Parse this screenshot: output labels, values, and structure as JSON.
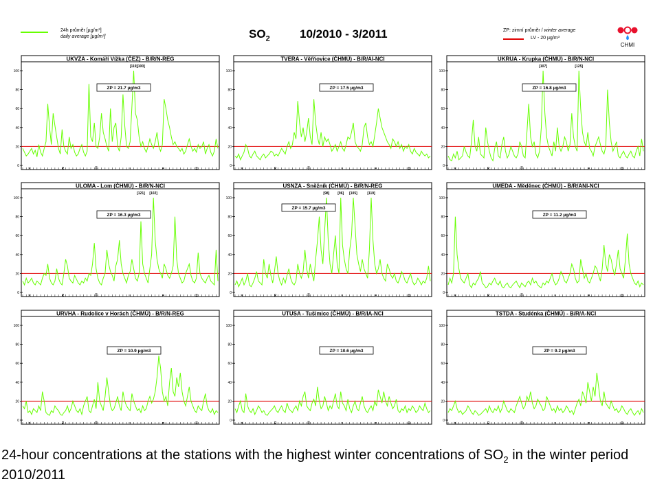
{
  "header": {
    "legend_daily_label_1": "24h průměr [µg/m³]",
    "legend_daily_label_2": "daily average [µg/m³]",
    "legend_winter_label": "ZP: zimní průměr / ",
    "legend_winter_label_en": "winter average",
    "legend_lv_label": "LV  - 20 µg/m³",
    "title_main": "SO",
    "title_sub": "2",
    "period": "10/2010 - 3/2011",
    "logo_text": "CHMI"
  },
  "caption": {
    "line_start": "24-hour concentrations at the stations with the highest winter concentrations of SO",
    "line_sub": "2",
    "line_end": " in the winter period 2010/2011"
  },
  "colors": {
    "series": "#66ff00",
    "limit": "#e00000",
    "logo_red": "#e8112d",
    "logo_blue": "#1e90ff"
  },
  "chart_data": [
    {
      "type": "line",
      "title": "UKVZA - Komáří Vížka (ČEZ) - B/R/N-REG",
      "zp": "ZP = 21.7 µg/m3",
      "peaks": [
        "[119]",
        "[100]"
      ],
      "ylim": [
        0,
        100
      ],
      "limit": 20,
      "x_labels": [
        "X",
        "XI",
        "XII",
        "I",
        "II",
        "III"
      ],
      "values": [
        18,
        14,
        10,
        12,
        15,
        18,
        12,
        16,
        9,
        22,
        14,
        10,
        18,
        25,
        65,
        40,
        22,
        55,
        42,
        30,
        18,
        12,
        38,
        20,
        15,
        12,
        30,
        18,
        22,
        14,
        10,
        12,
        18,
        22,
        14,
        10,
        15,
        86,
        30,
        25,
        45,
        20,
        18,
        30,
        55,
        35,
        28,
        20,
        15,
        60,
        25,
        40,
        45,
        20,
        15,
        30,
        75,
        42,
        20,
        18,
        25,
        62,
        100,
        55,
        48,
        30,
        20,
        25,
        18,
        14,
        20,
        28,
        22,
        18,
        25,
        35,
        20,
        15,
        22,
        70,
        60,
        48,
        40,
        30,
        22,
        25,
        20,
        18,
        15,
        18,
        12,
        15,
        22,
        28,
        20,
        15,
        18,
        14,
        22,
        18,
        20,
        25,
        12,
        18,
        22,
        14,
        10,
        15,
        28,
        18
      ]
    },
    {
      "type": "line",
      "title": "TVERA - Věřňovice (ČHMÚ) - B/R/AI-NCI",
      "zp": "ZP = 17.5 µg/m3",
      "peaks": [],
      "ylim": [
        0,
        100
      ],
      "limit": 20,
      "x_labels": [
        "X",
        "XI",
        "XII",
        "I",
        "II",
        "III"
      ],
      "values": [
        10,
        8,
        12,
        6,
        10,
        14,
        22,
        18,
        10,
        8,
        12,
        15,
        10,
        8,
        6,
        10,
        12,
        8,
        10,
        12,
        15,
        14,
        10,
        12,
        10,
        14,
        18,
        15,
        12,
        20,
        25,
        18,
        22,
        35,
        28,
        68,
        45,
        30,
        40,
        25,
        35,
        50,
        30,
        22,
        70,
        45,
        30,
        22,
        35,
        20,
        30,
        25,
        28,
        22,
        15,
        18,
        22,
        15,
        20,
        25,
        18,
        15,
        22,
        30,
        28,
        35,
        45,
        25,
        20,
        18,
        15,
        22,
        40,
        45,
        30,
        22,
        25,
        20,
        32,
        45,
        60,
        50,
        40,
        35,
        30,
        25,
        22,
        18,
        28,
        25,
        20,
        25,
        18,
        22,
        15,
        20,
        18,
        22,
        15,
        12,
        18,
        14,
        12,
        10,
        15,
        12,
        10,
        12,
        8,
        10
      ]
    },
    {
      "type": "line",
      "title": "UKRUA - Krupka (ČHMÚ) - B/R/N-NCI",
      "zp": "ZP = 16.8 µg/m3",
      "peaks": [
        "[107]",
        "[125]"
      ],
      "ylim": [
        0,
        100
      ],
      "limit": 20,
      "x_labels": [
        "X",
        "XI",
        "XII",
        "I",
        "II",
        "III"
      ],
      "values": [
        10,
        6,
        5,
        12,
        8,
        15,
        6,
        8,
        10,
        20,
        14,
        10,
        8,
        25,
        48,
        20,
        15,
        30,
        12,
        10,
        8,
        40,
        25,
        15,
        8,
        5,
        18,
        25,
        10,
        8,
        22,
        30,
        15,
        8,
        12,
        20,
        15,
        10,
        8,
        12,
        25,
        20,
        10,
        8,
        35,
        65,
        30,
        20,
        25,
        12,
        8,
        15,
        40,
        100,
        55,
        30,
        20,
        15,
        10,
        25,
        15,
        40,
        20,
        15,
        20,
        30,
        25,
        15,
        22,
        55,
        30,
        20,
        15,
        100,
        60,
        35,
        25,
        20,
        35,
        18,
        15,
        10,
        20,
        25,
        30,
        22,
        15,
        12,
        20,
        80,
        45,
        25,
        15,
        20,
        25,
        10,
        8,
        12,
        15,
        10,
        8,
        12,
        15,
        10,
        8,
        15,
        20,
        10,
        28,
        15
      ]
    },
    {
      "type": "line",
      "title": "ULOMA - Lom (ČHMÚ) - B/R/N-NCI",
      "zp": "ZP = 16.3 µg/m3",
      "peaks": [
        "[102]",
        "[121]"
      ],
      "ylim": [
        0,
        100
      ],
      "limit": 20,
      "x_labels": [
        "X",
        "XI",
        "XII",
        "I",
        "II",
        "III"
      ],
      "values": [
        12,
        8,
        15,
        10,
        12,
        15,
        10,
        8,
        12,
        10,
        8,
        15,
        20,
        18,
        30,
        15,
        10,
        8,
        12,
        25,
        15,
        10,
        8,
        20,
        35,
        28,
        15,
        12,
        10,
        18,
        14,
        10,
        8,
        12,
        10,
        15,
        12,
        20,
        18,
        30,
        52,
        25,
        15,
        10,
        8,
        15,
        20,
        45,
        30,
        22,
        18,
        12,
        28,
        35,
        55,
        30,
        20,
        15,
        10,
        18,
        22,
        35,
        25,
        15,
        12,
        20,
        75,
        30,
        20,
        15,
        10,
        25,
        40,
        100,
        55,
        35,
        25,
        20,
        15,
        30,
        25,
        18,
        15,
        20,
        28,
        80,
        35,
        20,
        15,
        10,
        12,
        20,
        25,
        30,
        18,
        12,
        10,
        15,
        42,
        20,
        15,
        12,
        10,
        15,
        18,
        12,
        10,
        8,
        45,
        12
      ]
    },
    {
      "type": "line",
      "title": "USNZA - Sněžník (ČHMÚ) - B/R/N-REG",
      "zp": "ZP = 15.7 µg/m3",
      "peaks": [
        "[98]",
        "[96]",
        "[105]",
        "[119]"
      ],
      "ylim": [
        0,
        100
      ],
      "limit": 20,
      "x_labels": [
        "X",
        "XI",
        "XII",
        "I",
        "II",
        "III"
      ],
      "values": [
        8,
        12,
        6,
        10,
        15,
        8,
        12,
        20,
        8,
        6,
        10,
        15,
        22,
        12,
        10,
        8,
        35,
        20,
        15,
        30,
        18,
        10,
        22,
        38,
        20,
        12,
        8,
        15,
        10,
        18,
        25,
        15,
        10,
        8,
        12,
        30,
        20,
        15,
        22,
        45,
        25,
        15,
        30,
        20,
        12,
        35,
        55,
        80,
        45,
        30,
        65,
        100,
        55,
        30,
        20,
        40,
        60,
        30,
        20,
        100,
        50,
        35,
        25,
        20,
        45,
        60,
        100,
        70,
        40,
        30,
        22,
        35,
        25,
        20,
        15,
        45,
        100,
        55,
        30,
        20,
        25,
        35,
        20,
        15,
        12,
        30,
        25,
        18,
        15,
        20,
        12,
        10,
        15,
        22,
        18,
        12,
        10,
        15,
        20,
        12,
        8,
        10,
        15,
        12,
        8,
        12,
        10,
        15,
        28,
        12
      ]
    },
    {
      "type": "line",
      "title": "UMEDA - Měděnec (ČHMÚ) - B/R/ANI-NCI",
      "zp": "ZP = 11.2 µg/m3",
      "peaks": [],
      "ylim": [
        0,
        100
      ],
      "limit": 20,
      "x_labels": [
        "X",
        "XI",
        "XII",
        "I",
        "II",
        "III"
      ],
      "values": [
        8,
        15,
        10,
        20,
        80,
        40,
        25,
        15,
        12,
        10,
        15,
        20,
        8,
        5,
        10,
        8,
        12,
        15,
        22,
        10,
        8,
        5,
        6,
        10,
        8,
        12,
        15,
        10,
        8,
        12,
        6,
        5,
        8,
        10,
        6,
        5,
        8,
        10,
        12,
        8,
        5,
        10,
        8,
        6,
        10,
        12,
        8,
        15,
        10,
        12,
        8,
        6,
        5,
        10,
        8,
        12,
        10,
        15,
        20,
        12,
        8,
        10,
        15,
        22,
        18,
        12,
        10,
        15,
        20,
        30,
        25,
        15,
        10,
        12,
        35,
        25,
        15,
        20,
        12,
        10,
        15,
        20,
        28,
        25,
        18,
        12,
        25,
        50,
        30,
        22,
        40,
        35,
        25,
        18,
        30,
        45,
        25,
        20,
        15,
        35,
        62,
        30,
        20,
        15,
        10,
        8,
        12,
        6,
        10,
        8
      ]
    },
    {
      "type": "line",
      "title": "URVHA - Rudolice v Horách (ČHMÚ) - B/R/N-REG",
      "zp": "ZP = 10.9 µg/m3",
      "peaks": [],
      "ylim": [
        0,
        100
      ],
      "limit": 20,
      "x_labels": [
        "X",
        "XI",
        "XII",
        "I",
        "II",
        "III"
      ],
      "values": [
        15,
        12,
        20,
        8,
        10,
        6,
        12,
        10,
        8,
        15,
        10,
        30,
        20,
        8,
        6,
        5,
        10,
        8,
        15,
        12,
        10,
        6,
        5,
        8,
        10,
        15,
        8,
        12,
        20,
        15,
        10,
        8,
        12,
        6,
        15,
        20,
        25,
        10,
        8,
        15,
        22,
        12,
        40,
        20,
        15,
        10,
        25,
        45,
        30,
        15,
        10,
        12,
        18,
        25,
        15,
        10,
        30,
        20,
        15,
        12,
        10,
        28,
        20,
        15,
        10,
        12,
        8,
        15,
        10,
        12,
        20,
        25,
        18,
        22,
        30,
        45,
        68,
        55,
        30,
        20,
        25,
        15,
        40,
        55,
        30,
        25,
        45,
        35,
        50,
        30,
        20,
        15,
        25,
        35,
        20,
        15,
        10,
        8,
        15,
        12,
        10,
        20,
        28,
        15,
        10,
        8,
        12,
        6,
        10,
        8
      ]
    },
    {
      "type": "line",
      "title": "UTUSA - Tušimice (ČHMÚ) - B/R/IA-NCI",
      "zp": "ZP = 10.6 µg/m3",
      "peaks": [],
      "ylim": [
        0,
        100
      ],
      "limit": 20,
      "x_labels": [
        "X",
        "XI",
        "XII",
        "I",
        "II",
        "III"
      ],
      "values": [
        12,
        8,
        15,
        20,
        10,
        8,
        28,
        15,
        10,
        8,
        12,
        6,
        10,
        15,
        12,
        8,
        10,
        6,
        5,
        8,
        10,
        12,
        15,
        10,
        8,
        12,
        15,
        10,
        8,
        18,
        12,
        10,
        8,
        12,
        15,
        10,
        20,
        15,
        25,
        30,
        15,
        12,
        10,
        18,
        22,
        15,
        35,
        20,
        12,
        15,
        25,
        18,
        10,
        15,
        12,
        20,
        28,
        15,
        12,
        30,
        18,
        15,
        10,
        22,
        12,
        8,
        15,
        20,
        12,
        10,
        18,
        25,
        15,
        10,
        8,
        12,
        15,
        10,
        20,
        15,
        32,
        25,
        18,
        30,
        20,
        15,
        25,
        18,
        12,
        15,
        22,
        10,
        8,
        12,
        10,
        15,
        8,
        12,
        10,
        15,
        12,
        8,
        10,
        15,
        12,
        10,
        18,
        12,
        8,
        10
      ]
    },
    {
      "type": "line",
      "title": "TSTDA - Studénka (ČHMÚ) - B/R/A-NCI",
      "zp": "ZP = 9.2 µg/m3",
      "peaks": [],
      "ylim": [
        0,
        100
      ],
      "limit": 20,
      "x_labels": [
        "X",
        "XI",
        "XII",
        "I",
        "II",
        "III"
      ],
      "values": [
        8,
        12,
        10,
        15,
        20,
        12,
        8,
        10,
        6,
        8,
        10,
        15,
        12,
        8,
        6,
        10,
        8,
        5,
        6,
        8,
        10,
        12,
        8,
        15,
        10,
        8,
        12,
        10,
        15,
        8,
        12,
        20,
        15,
        10,
        8,
        12,
        10,
        8,
        15,
        20,
        25,
        18,
        12,
        15,
        25,
        20,
        30,
        18,
        12,
        15,
        22,
        18,
        15,
        10,
        12,
        25,
        20,
        15,
        10,
        12,
        8,
        15,
        10,
        12,
        8,
        10,
        15,
        12,
        8,
        10,
        6,
        12,
        18,
        22,
        15,
        30,
        25,
        18,
        40,
        30,
        20,
        35,
        25,
        50,
        35,
        20,
        15,
        30,
        18,
        15,
        12,
        20,
        15,
        10,
        12,
        8,
        10,
        15,
        12,
        8,
        6,
        10,
        12,
        8,
        5,
        8,
        10,
        6,
        12,
        8
      ]
    }
  ]
}
